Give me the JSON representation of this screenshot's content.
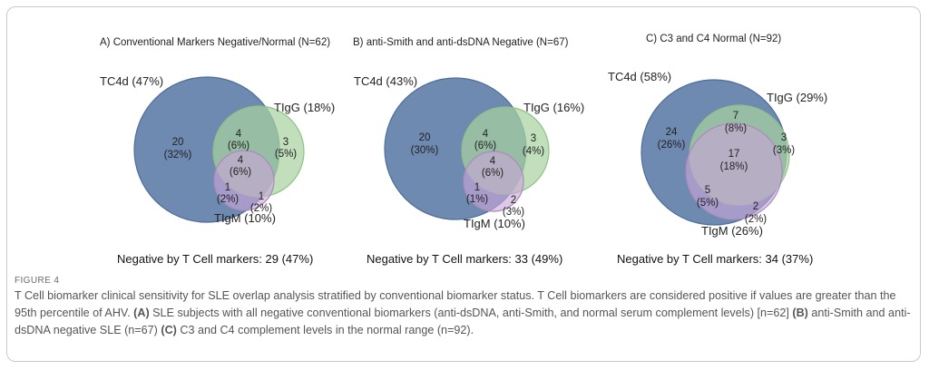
{
  "figure": {
    "label": "FIGURE 4",
    "caption_parts": [
      {
        "t": "T Cell biomarker clinical sensitivity for SLE overlap analysis stratified by conventional biomarker status. T Cell biomarkers are considered positive if values are greater than the 95th percentile of AHV. ",
        "b": false
      },
      {
        "t": "(A)",
        "b": true
      },
      {
        "t": " SLE subjects with all negative conventional biomarkers (anti-dsDNA, anti-Smith, and normal serum complement levels) [n=62] ",
        "b": false
      },
      {
        "t": "(B)",
        "b": true
      },
      {
        "t": " anti-Smith and anti-dsDNA negative SLE (n=67) ",
        "b": false
      },
      {
        "t": "(C)",
        "b": true
      },
      {
        "t": " C3 and C4 complement levels in the normal range (n=92).",
        "b": false
      }
    ]
  },
  "colors": {
    "tc4d": "#5a7aa6",
    "tigg": "#a8d3a0",
    "tigm": "#c9a6d9",
    "tc4d_stroke": "#4e6d96",
    "tigg_stroke": "#8fc087",
    "tigm_stroke": "#a98bbd"
  },
  "panels": [
    {
      "title": "A) Conventional Markers Negative/Normal (N=62)",
      "sets": {
        "tc4d": "TC4d (47%)",
        "tigg": "TIgG (18%)",
        "tigm": "TIgM (10%)"
      },
      "regions": {
        "tc4d_only": [
          "20",
          "(32%)"
        ],
        "tc4d_tigg": [
          "4",
          "(6%)"
        ],
        "tigg_only": [
          "3",
          "(5%)"
        ],
        "all_three": [
          "4",
          "(6%)"
        ],
        "tc4d_tigm": [
          "1",
          "(2%)"
        ],
        "tigm_only": [
          "1",
          "(2%)"
        ]
      },
      "negative": "Negative by T Cell markers: 29 (47%)"
    },
    {
      "title": "B) anti-Smith and anti-dsDNA Negative (N=67)",
      "sets": {
        "tc4d": "TC4d (43%)",
        "tigg": "TIgG (16%)",
        "tigm": "TIgM (10%)"
      },
      "regions": {
        "tc4d_only": [
          "20",
          "(30%)"
        ],
        "tc4d_tigg": [
          "4",
          "(6%)"
        ],
        "tigg_only": [
          "3",
          "(4%)"
        ],
        "all_three": [
          "4",
          "(6%)"
        ],
        "tc4d_tigm": [
          "1",
          "(1%)"
        ],
        "tigm_only": [
          "2",
          "(3%)"
        ]
      },
      "negative": "Negative by T Cell markers: 33 (49%)"
    },
    {
      "title": "C) C3 and C4 Normal (N=92)",
      "sets": {
        "tc4d": "TC4d (58%)",
        "tigg": "TIgG (29%)",
        "tigm": "TIgM (26%)"
      },
      "regions": {
        "tc4d_only": [
          "24",
          "(26%)"
        ],
        "tc4d_tigg": [
          "7",
          "(8%)"
        ],
        "tigg_only": [
          "3",
          "(3%)"
        ],
        "all_three": [
          "17",
          "(18%)"
        ],
        "tc4d_tigm": [
          "5",
          "(5%)"
        ],
        "tigm_only": [
          "2",
          "(2%)"
        ]
      },
      "negative": "Negative by T Cell markers: 34 (37%)"
    }
  ]
}
